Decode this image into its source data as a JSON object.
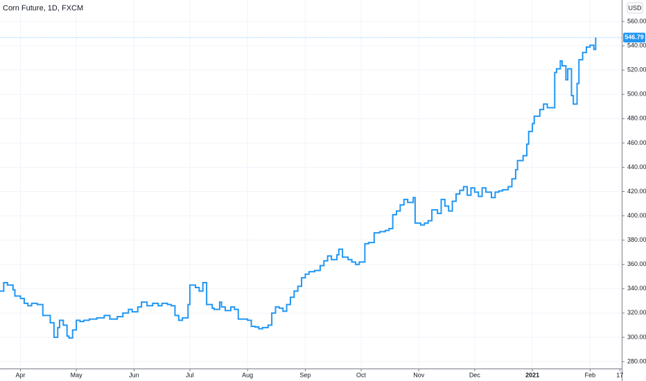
{
  "chart_data": {
    "type": "line",
    "step": true,
    "title": "Corn Future, 1D, FXCM",
    "currency": "USD",
    "color": "#2196f3",
    "grid": true,
    "xlim": [
      "2020-03-21",
      "2021-02-18"
    ],
    "xticks": [
      {
        "value": "2020-04-01",
        "label": "Apr"
      },
      {
        "value": "2020-05-01",
        "label": "May"
      },
      {
        "value": "2020-06-01",
        "label": "Jun"
      },
      {
        "value": "2020-07-01",
        "label": "Jul"
      },
      {
        "value": "2020-08-01",
        "label": "Aug"
      },
      {
        "value": "2020-09-01",
        "label": "Sep"
      },
      {
        "value": "2020-10-01",
        "label": "Oct"
      },
      {
        "value": "2020-11-01",
        "label": "Nov"
      },
      {
        "value": "2020-12-01",
        "label": "Dec"
      },
      {
        "value": "2021-01-01",
        "label": "2021"
      },
      {
        "value": "2021-02-01",
        "label": "Feb"
      },
      {
        "value": "2021-02-17",
        "label": "17"
      }
    ],
    "ylim": [
      274.3,
      577.7
    ],
    "yticks": [
      {
        "value": 280,
        "label": "280.00"
      },
      {
        "value": 300,
        "label": "300.00"
      },
      {
        "value": 320,
        "label": "320.00"
      },
      {
        "value": 340,
        "label": "340.00"
      },
      {
        "value": 360,
        "label": "360.00"
      },
      {
        "value": 380,
        "label": "380.00"
      },
      {
        "value": 400,
        "label": "400.00"
      },
      {
        "value": 420,
        "label": "420.00"
      },
      {
        "value": 440,
        "label": "440.00"
      },
      {
        "value": 460,
        "label": "460.00"
      },
      {
        "value": 480,
        "label": "480.00"
      },
      {
        "value": 500,
        "label": "500.00"
      },
      {
        "value": 520,
        "label": "520.00"
      },
      {
        "value": 540,
        "label": "540.00"
      },
      {
        "value": 560,
        "label": "560.00"
      }
    ],
    "x": [
      "2020-03-21",
      "2020-03-23",
      "2020-03-25",
      "2020-03-28",
      "2020-03-29",
      "2020-04-01",
      "2020-04-03",
      "2020-04-05",
      "2020-04-07",
      "2020-04-10",
      "2020-04-13",
      "2020-04-17",
      "2020-04-19",
      "2020-04-21",
      "2020-04-22",
      "2020-04-24",
      "2020-04-26",
      "2020-04-27",
      "2020-04-29",
      "2020-05-01",
      "2020-05-03",
      "2020-05-05",
      "2020-05-08",
      "2020-05-12",
      "2020-05-16",
      "2020-05-19",
      "2020-05-23",
      "2020-05-26",
      "2020-05-29",
      "2020-05-31",
      "2020-06-03",
      "2020-06-05",
      "2020-06-08",
      "2020-06-11",
      "2020-06-14",
      "2020-06-16",
      "2020-06-19",
      "2020-06-21",
      "2020-06-23",
      "2020-06-25",
      "2020-06-27",
      "2020-06-30",
      "2020-07-01",
      "2020-07-04",
      "2020-07-06",
      "2020-07-08",
      "2020-07-10",
      "2020-07-13",
      "2020-07-14",
      "2020-07-17",
      "2020-07-18",
      "2020-07-20",
      "2020-07-23",
      "2020-07-25",
      "2020-07-27",
      "2020-08-01",
      "2020-08-03",
      "2020-08-05",
      "2020-08-07",
      "2020-08-09",
      "2020-08-12",
      "2020-08-14",
      "2020-08-16",
      "2020-08-18",
      "2020-08-20",
      "2020-08-22",
      "2020-08-24",
      "2020-08-26",
      "2020-08-28",
      "2020-08-30",
      "2020-09-01",
      "2020-09-03",
      "2020-09-06",
      "2020-09-09",
      "2020-09-11",
      "2020-09-13",
      "2020-09-15",
      "2020-09-18",
      "2020-09-19",
      "2020-09-21",
      "2020-09-24",
      "2020-09-26",
      "2020-09-28",
      "2020-09-30",
      "2020-10-03",
      "2020-10-05",
      "2020-10-08",
      "2020-10-11",
      "2020-10-14",
      "2020-10-16",
      "2020-10-18",
      "2020-10-20",
      "2020-10-22",
      "2020-10-24",
      "2020-10-26",
      "2020-10-29",
      "2020-10-30",
      "2020-11-02",
      "2020-11-04",
      "2020-11-06",
      "2020-11-08",
      "2020-11-11",
      "2020-11-13",
      "2020-11-15",
      "2020-11-17",
      "2020-11-19",
      "2020-11-21",
      "2020-11-23",
      "2020-11-25",
      "2020-11-27",
      "2020-11-29",
      "2020-12-01",
      "2020-12-03",
      "2020-12-05",
      "2020-12-07",
      "2020-12-10",
      "2020-12-12",
      "2020-12-14",
      "2020-12-16",
      "2020-12-19",
      "2020-12-21",
      "2020-12-23",
      "2020-12-24",
      "2020-12-27",
      "2020-12-29",
      "2020-12-30",
      "2021-01-01",
      "2021-01-02",
      "2021-01-05",
      "2021-01-07",
      "2021-01-09",
      "2021-01-13",
      "2021-01-14",
      "2021-01-16",
      "2021-01-17",
      "2021-01-19",
      "2021-01-20",
      "2021-01-22",
      "2021-01-23",
      "2021-01-25",
      "2021-01-26",
      "2021-01-28",
      "2021-01-30",
      "2021-02-01",
      "2021-02-03",
      "2021-02-04"
    ],
    "values": [
      338,
      345,
      343,
      339,
      334,
      332,
      328,
      326,
      328,
      327,
      318,
      312,
      300,
      308,
      314,
      310,
      301,
      299.5,
      306,
      314,
      313,
      314,
      315,
      316,
      318,
      315,
      317,
      320,
      323,
      321,
      325,
      329,
      326,
      328,
      326,
      328,
      327,
      326,
      318,
      314,
      316,
      327,
      343,
      341,
      338,
      345,
      327,
      324,
      323,
      329,
      325,
      322,
      325,
      323,
      315,
      314,
      309,
      308.5,
      307,
      308,
      310,
      320,
      325,
      324,
      321.5,
      327,
      333,
      338,
      342,
      349,
      352,
      354,
      355,
      359,
      363,
      367,
      364,
      368,
      372.5,
      366,
      364,
      362,
      360,
      362,
      377,
      378,
      386,
      387,
      388,
      389.5,
      401,
      404,
      409,
      413.5,
      411,
      415,
      394,
      392.5,
      394,
      396,
      405,
      402,
      413.5,
      408,
      404,
      412,
      418,
      421,
      424,
      417,
      423,
      419.5,
      416,
      423,
      419.5,
      415,
      419.5,
      420.5,
      421.5,
      424,
      430.5,
      438,
      445.5,
      449.5,
      459,
      469.5,
      476,
      482,
      487.5,
      492,
      489,
      518,
      521,
      527.5,
      523.5,
      512,
      521,
      499,
      492,
      509,
      528.5,
      534.5,
      539,
      540.5,
      537,
      546.79
    ]
  }
}
